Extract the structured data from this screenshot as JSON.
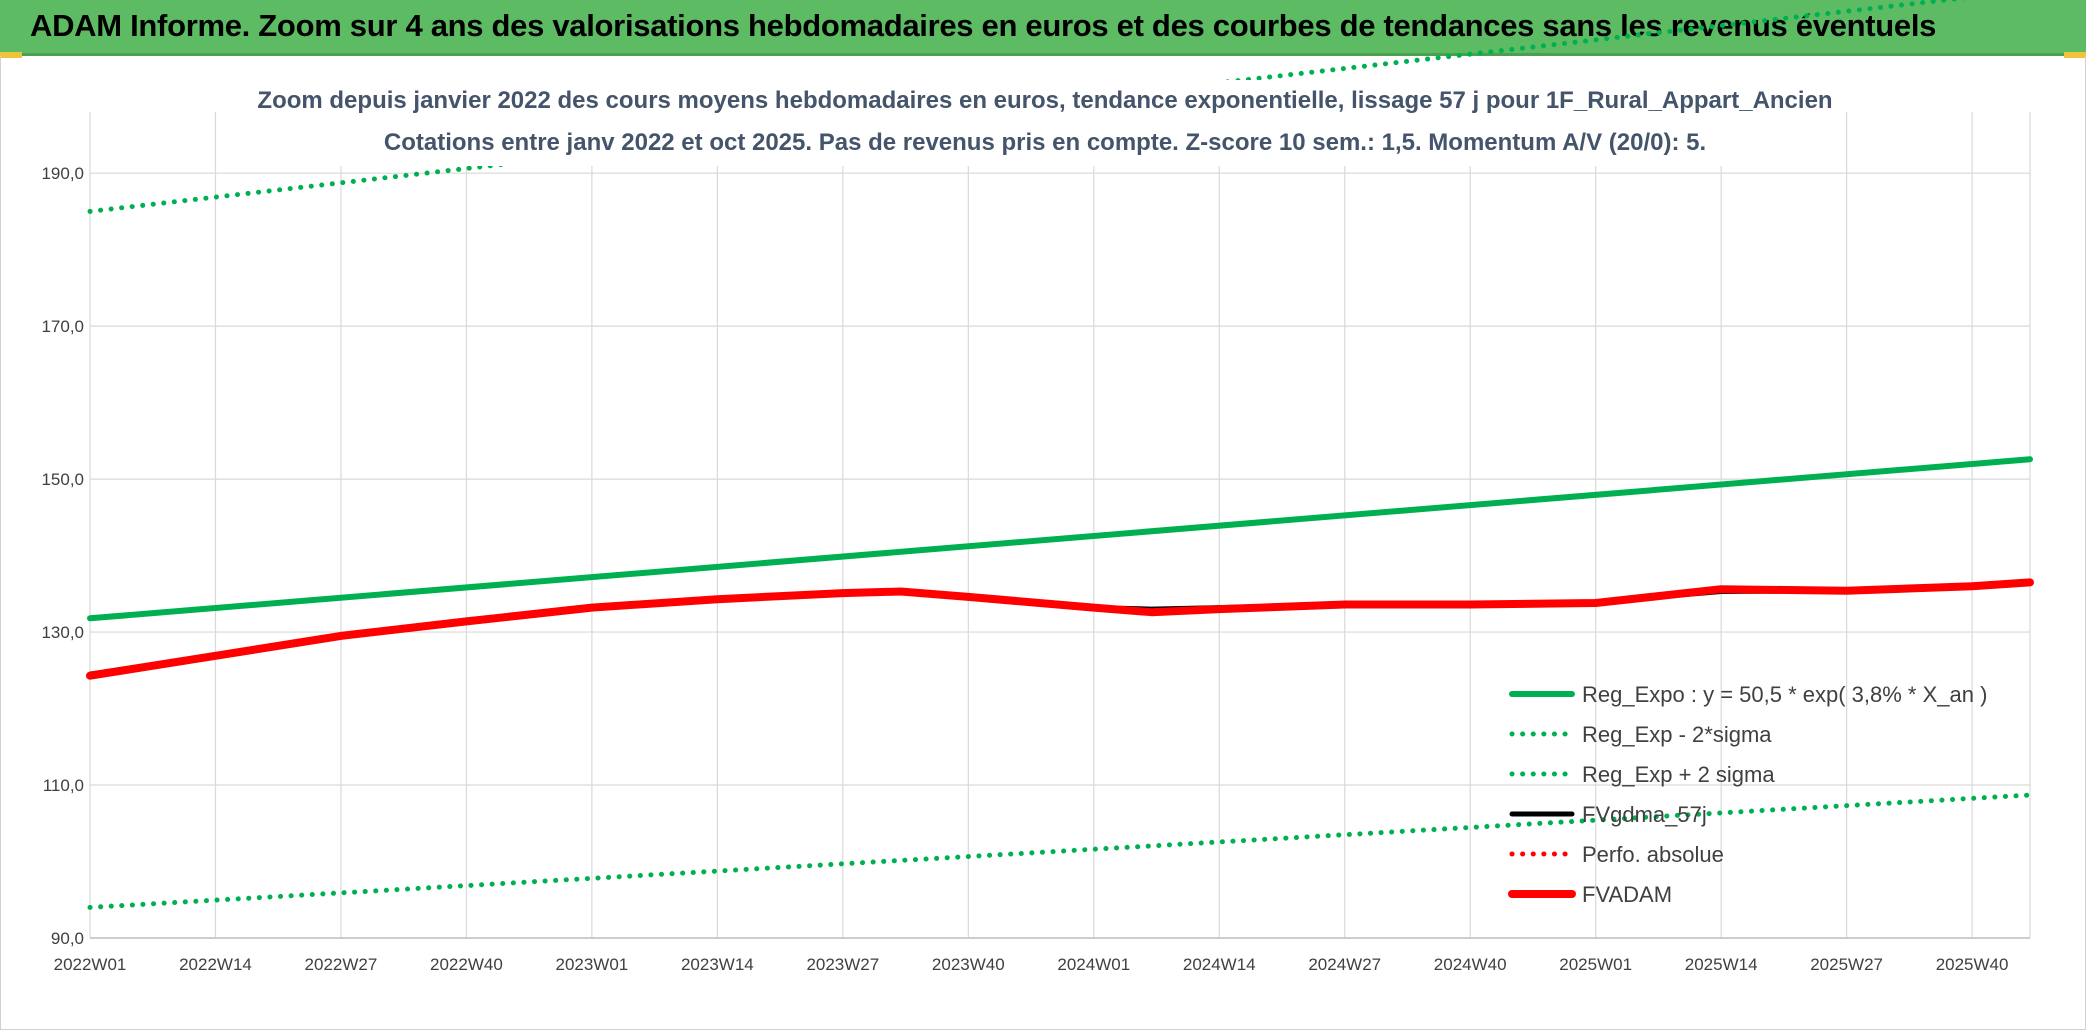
{
  "banner": {
    "title": "ADAM Informe. Zoom sur 4 ans des valorisations hebdomadaires en euros et des courbes de tendances sans les revenus éventuels",
    "color": "#5dbb63"
  },
  "chart_data": {
    "type": "line",
    "title": "Zoom depuis janvier 2022 des cours moyens hebdomadaires en euros, tendance exponentielle, lissage 57 j pour 1F_Rural_Appart_Ancien",
    "subtitle": "Cotations entre janv 2022 et oct 2025. Pas de revenus pris en compte. Z-score 10 sem.: 1,5. Momentum A/V (20/0): 5.",
    "xlabel": "",
    "ylabel": "",
    "ylim": [
      90,
      198
    ],
    "yticks": [
      "90,0",
      "110,0",
      "130,0",
      "150,0",
      "170,0",
      "190,0"
    ],
    "ytick_values": [
      90,
      110,
      130,
      150,
      170,
      190
    ],
    "xticks": [
      "2022W01",
      "2022W14",
      "2022W27",
      "2022W40",
      "2023W01",
      "2023W14",
      "2023W27",
      "2023W40",
      "2024W01",
      "2024W14",
      "2024W27",
      "2024W40",
      "2025W01",
      "2025W14",
      "2025W27",
      "2025W40"
    ],
    "x_range_weeks": [
      0,
      201
    ],
    "grid": true,
    "legend_position": "bottom-right",
    "series": [
      {
        "name": "Reg_Expo : y = 50,5 * exp( 3,8% *  X_an )",
        "color": "#00b050",
        "style": "solid",
        "x": [
          0,
          201
        ],
        "values": [
          131.8,
          152.6
        ]
      },
      {
        "name": "Reg_Exp - 2*sigma",
        "color": "#00b050",
        "style": "dotted",
        "x": [
          0,
          201
        ],
        "values": [
          94.0,
          108.7
        ]
      },
      {
        "name": "Reg_Exp + 2 sigma",
        "color": "#00b050",
        "style": "dotted",
        "x": [
          0,
          201
        ],
        "values": [
          185.0,
          213.9
        ]
      },
      {
        "name": "FVgdma_57j",
        "color": "#000000",
        "style": "solid",
        "x": [
          0,
          13,
          26,
          39,
          52,
          65,
          78,
          84,
          91,
          104,
          110,
          117,
          130,
          143,
          156,
          169,
          182,
          195,
          201
        ],
        "values": [
          124.5,
          127.0,
          129.6,
          131.5,
          133.3,
          134.4,
          135.2,
          135.2,
          134.5,
          133.2,
          133.0,
          133.2,
          133.6,
          133.6,
          133.9,
          135.3,
          135.4,
          136.0,
          136.4
        ]
      },
      {
        "name": "Perfo. absolue",
        "color": "#ff0000",
        "style": "dotted",
        "x": [],
        "values": []
      },
      {
        "name": "FVADAM",
        "color": "#ff0000",
        "style": "solid",
        "x": [
          0,
          13,
          26,
          39,
          52,
          65,
          78,
          84,
          91,
          104,
          110,
          117,
          130,
          143,
          156,
          169,
          182,
          195,
          201
        ],
        "values": [
          124.3,
          126.9,
          129.5,
          131.4,
          133.2,
          134.3,
          135.1,
          135.3,
          134.6,
          133.2,
          132.6,
          133.0,
          133.6,
          133.6,
          133.8,
          135.6,
          135.4,
          136.0,
          136.5
        ]
      }
    ]
  }
}
